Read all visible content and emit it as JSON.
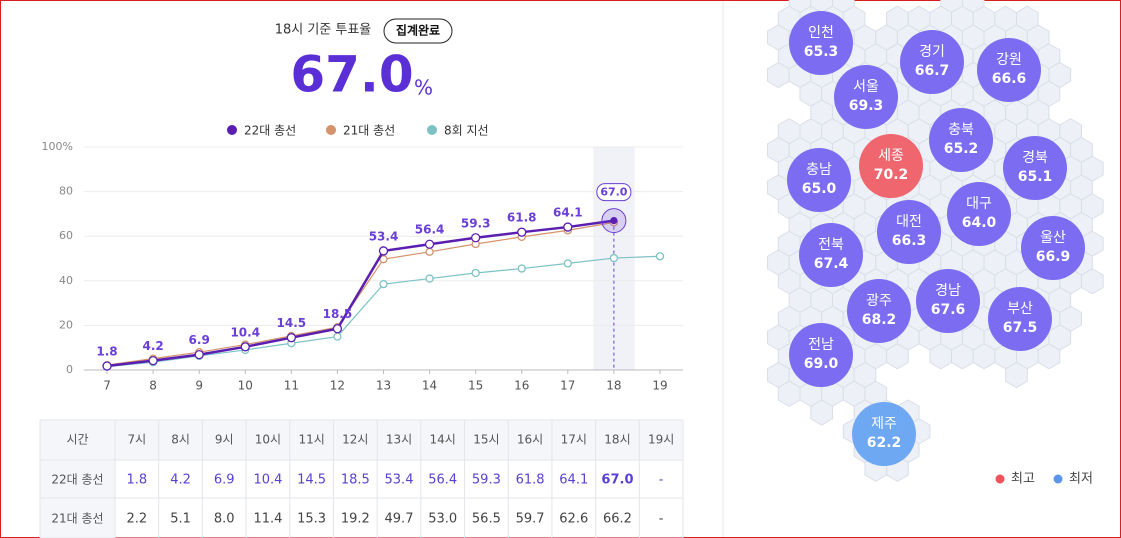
{
  "header": {
    "title": "18시 기준 투표율",
    "badge": "집계완료",
    "value": "67.0",
    "unit": "%"
  },
  "chart_data": {
    "type": "line",
    "legend": "top",
    "x": [
      7,
      8,
      9,
      10,
      11,
      12,
      13,
      14,
      15,
      16,
      17,
      18,
      19
    ],
    "xlim": [
      6.5,
      19.5
    ],
    "xticks": [
      7,
      8,
      9,
      10,
      11,
      12,
      13,
      14,
      15,
      16,
      17,
      18,
      19
    ],
    "ylim": [
      0,
      100
    ],
    "yticks": [
      0,
      20,
      40,
      60,
      80,
      {
        "value": 100,
        "label": "100%"
      }
    ],
    "grid": true,
    "series": [
      {
        "name": "22대 총선",
        "color": "#5a1fb0",
        "label_color": "#6a3fd6",
        "values": [
          1.8,
          4.2,
          6.9,
          10.4,
          14.5,
          18.5,
          53.4,
          56.4,
          59.3,
          61.8,
          64.1,
          67.0,
          null
        ],
        "value_labels": [
          "1.8",
          "4.2",
          "6.9",
          "10.4",
          "14.5",
          "18.5",
          "53.4",
          "56.4",
          "59.3",
          "61.8",
          "64.1",
          "67.0",
          null
        ]
      },
      {
        "name": "21대 총선",
        "color": "#d4936a",
        "values": [
          2.2,
          5.1,
          8.0,
          11.4,
          15.3,
          19.2,
          49.7,
          53.0,
          56.5,
          59.7,
          62.6,
          66.2,
          null
        ]
      },
      {
        "name": "8회 지선",
        "color": "#7cc2c4",
        "values": [
          1.5,
          3.5,
          6.3,
          9.0,
          12.0,
          15.0,
          38.5,
          41.0,
          43.5,
          45.5,
          47.8,
          50.2,
          51.0
        ]
      }
    ]
  },
  "table": {
    "header": [
      "시간",
      "7시",
      "8시",
      "9시",
      "10시",
      "11시",
      "12시",
      "13시",
      "14시",
      "15시",
      "16시",
      "17시",
      "18시",
      "19시"
    ],
    "rows": [
      [
        "22대 총선",
        "1.8",
        "4.2",
        "6.9",
        "10.4",
        "14.5",
        "18.5",
        "53.4",
        "56.4",
        "59.3",
        "61.8",
        "64.1",
        "67.0",
        "-"
      ],
      [
        "21대 총선",
        "2.2",
        "5.1",
        "8.0",
        "11.4",
        "15.3",
        "19.2",
        "49.7",
        "53.0",
        "56.5",
        "59.7",
        "62.6",
        "66.2",
        "-"
      ]
    ]
  },
  "map": {
    "default_color": "#7b6cf2",
    "regions": [
      {
        "name": "인천",
        "value": "65.3"
      },
      {
        "name": "경기",
        "value": "66.7"
      },
      {
        "name": "강원",
        "value": "66.6"
      },
      {
        "name": "서울",
        "value": "69.3"
      },
      {
        "name": "충북",
        "value": "65.2"
      },
      {
        "name": "세종",
        "value": "70.2",
        "color": "#f0666e"
      },
      {
        "name": "경북",
        "value": "65.1"
      },
      {
        "name": "충남",
        "value": "65.0"
      },
      {
        "name": "대구",
        "value": "64.0"
      },
      {
        "name": "대전",
        "value": "66.3"
      },
      {
        "name": "울산",
        "value": "66.9"
      },
      {
        "name": "전북",
        "value": "67.4"
      },
      {
        "name": "경남",
        "value": "67.6"
      },
      {
        "name": "광주",
        "value": "68.2"
      },
      {
        "name": "부산",
        "value": "67.5"
      },
      {
        "name": "전남",
        "value": "69.0"
      },
      {
        "name": "제주",
        "value": "62.2",
        "color": "#6ea8f2"
      }
    ],
    "legend": [
      {
        "label": "최고",
        "color": "#f0525a"
      },
      {
        "label": "최저",
        "color": "#5b96ea"
      }
    ]
  }
}
